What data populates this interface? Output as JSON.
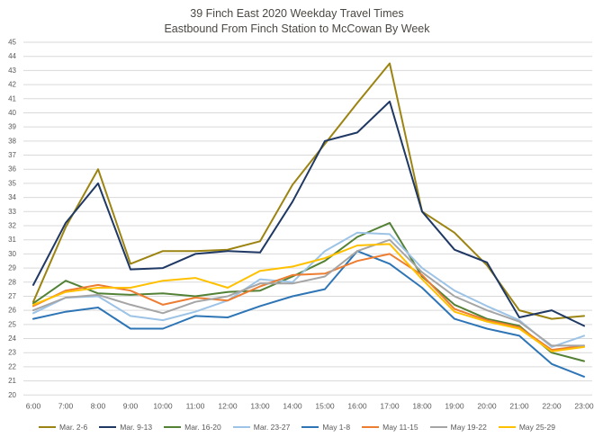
{
  "chart_data": {
    "type": "line",
    "title": "39 Finch East 2020 Weekday Travel Times",
    "subtitle": "Eastbound From Finch Station to McCowan By Week",
    "x_labels": [
      "6:00",
      "7:00",
      "8:00",
      "9:00",
      "10:00",
      "11:00",
      "12:00",
      "13:00",
      "14:00",
      "15:00",
      "16:00",
      "17:00",
      "18:00",
      "19:00",
      "20:00",
      "21:00",
      "22:00",
      "23:00"
    ],
    "ylim": [
      20,
      45
    ],
    "y_tick_step": 1,
    "grid": "horizontal",
    "legend_position": "bottom",
    "axis_text_color": "#595959",
    "grid_color": "#d9d9d9",
    "background_color": "#ffffff",
    "series": [
      {
        "name": "Mar. 2-6",
        "color": "#9c8412",
        "values": [
          26.6,
          31.9,
          36.0,
          29.3,
          30.2,
          30.2,
          30.3,
          30.9,
          34.9,
          37.8,
          40.7,
          43.5,
          33.0,
          31.5,
          29.2,
          26.0,
          25.4,
          25.6
        ]
      },
      {
        "name": "Mar. 9-13",
        "color": "#1f3864",
        "values": [
          27.8,
          32.2,
          35.0,
          28.9,
          29.0,
          30.0,
          30.2,
          30.1,
          33.7,
          38.0,
          38.6,
          40.8,
          33.0,
          30.3,
          29.4,
          25.5,
          26.0,
          24.9
        ]
      },
      {
        "name": "Mar. 16-20",
        "color": "#538135",
        "values": [
          26.5,
          28.1,
          27.2,
          27.1,
          27.2,
          27.0,
          27.3,
          27.4,
          28.4,
          29.5,
          31.2,
          32.2,
          28.4,
          26.4,
          25.4,
          24.9,
          23.0,
          22.4
        ]
      },
      {
        "name": "Mar. 23-27",
        "color": "#9dc3e6",
        "values": [
          25.8,
          26.9,
          27.0,
          25.6,
          25.3,
          25.9,
          26.7,
          28.2,
          28.0,
          30.2,
          31.5,
          31.4,
          29.0,
          27.4,
          26.3,
          25.3,
          23.4,
          24.2
        ]
      },
      {
        "name": "May 1-8",
        "color": "#2e75b6",
        "values": [
          25.4,
          25.9,
          26.2,
          24.7,
          24.7,
          25.6,
          25.5,
          26.3,
          27.0,
          27.5,
          30.2,
          29.3,
          27.6,
          25.4,
          24.7,
          24.2,
          22.2,
          21.3
        ]
      },
      {
        "name": "May 11-15",
        "color": "#ed7d31",
        "values": [
          26.3,
          27.4,
          27.8,
          27.4,
          26.4,
          26.9,
          26.7,
          27.7,
          28.5,
          28.6,
          29.5,
          30.0,
          28.5,
          26.1,
          25.3,
          24.8,
          23.2,
          23.5
        ]
      },
      {
        "name": "May 19-22",
        "color": "#a5a5a5",
        "values": [
          26.0,
          26.9,
          27.1,
          26.4,
          25.8,
          26.6,
          27.0,
          27.9,
          27.9,
          28.4,
          30.2,
          31.0,
          28.7,
          27.0,
          26.0,
          25.2,
          23.5,
          23.5
        ]
      },
      {
        "name": "May 25-29",
        "color": "#ffc000",
        "values": [
          26.4,
          27.3,
          27.6,
          27.6,
          28.1,
          28.3,
          27.6,
          28.8,
          29.1,
          29.7,
          30.6,
          30.7,
          28.2,
          25.9,
          25.2,
          24.7,
          23.1,
          23.4
        ]
      }
    ]
  }
}
